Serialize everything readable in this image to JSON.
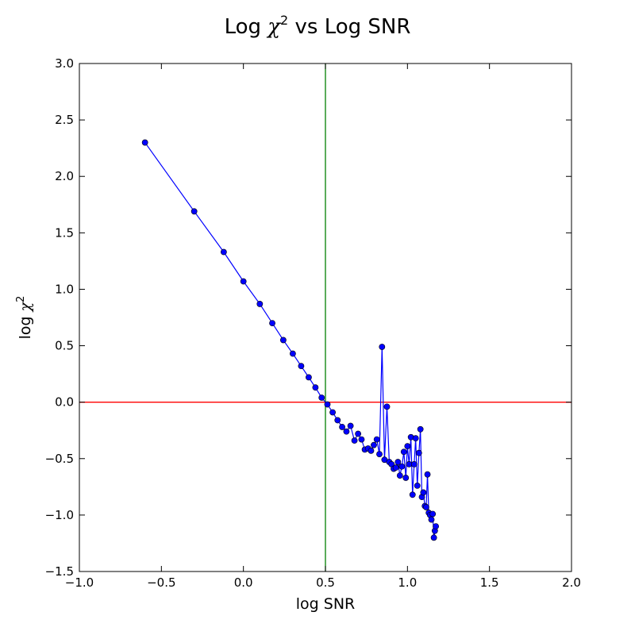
{
  "chart_data": {
    "type": "line",
    "title": {
      "prefix": "Log ",
      "symbol": "χ",
      "superscript": "2",
      "suffix": " vs Log SNR"
    },
    "xlabel": "log SNR",
    "ylabel": {
      "prefix": "log ",
      "symbol": "χ",
      "superscript": "2"
    },
    "xlim": [
      -1.0,
      2.0
    ],
    "ylim": [
      -1.5,
      3.0
    ],
    "xticks": [
      -1.0,
      -0.5,
      0.0,
      0.5,
      1.0,
      1.5,
      2.0
    ],
    "xtick_labels": [
      "−1.0",
      "−0.5",
      "0.0",
      "0.5",
      "1.0",
      "1.5",
      "2.0"
    ],
    "yticks": [
      -1.5,
      -1.0,
      -0.5,
      0.0,
      0.5,
      1.0,
      1.5,
      2.0,
      2.5,
      3.0
    ],
    "ytick_labels": [
      "−1.5",
      "−1.0",
      "−0.5",
      "0.0",
      "0.5",
      "1.0",
      "1.5",
      "2.0",
      "2.5",
      "3.0"
    ],
    "grid": false,
    "reference_lines": [
      {
        "orientation": "vertical",
        "value": 0.5,
        "color": "#008000"
      },
      {
        "orientation": "horizontal",
        "value": 0.0,
        "color": "#ff0000"
      }
    ],
    "series": [
      {
        "color": "#0000ff",
        "marker": "circle",
        "x": [
          -0.6,
          -0.3,
          -0.12,
          0.0,
          0.1,
          0.176,
          0.243,
          0.301,
          0.352,
          0.398,
          0.439,
          0.477,
          0.512,
          0.544,
          0.574,
          0.602,
          0.628,
          0.653,
          0.677,
          0.699,
          0.72,
          0.74,
          0.76,
          0.778,
          0.795,
          0.813,
          0.829,
          0.845,
          0.86,
          0.875,
          0.889,
          0.903,
          0.916,
          0.929,
          0.942,
          0.954,
          0.966,
          0.978,
          0.99,
          1.0,
          1.01,
          1.021,
          1.031,
          1.041,
          1.05,
          1.06,
          1.07,
          1.079,
          1.088,
          1.097,
          1.106,
          1.114,
          1.122,
          1.13,
          1.138,
          1.146,
          1.154,
          1.161,
          1.167,
          1.173
        ],
        "y": [
          2.3,
          1.69,
          1.33,
          1.07,
          0.87,
          0.7,
          0.55,
          0.43,
          0.32,
          0.22,
          0.13,
          0.04,
          -0.02,
          -0.09,
          -0.16,
          -0.22,
          -0.26,
          -0.21,
          -0.34,
          -0.28,
          -0.33,
          -0.42,
          -0.41,
          -0.43,
          -0.38,
          -0.33,
          -0.46,
          0.49,
          -0.51,
          -0.04,
          -0.53,
          -0.55,
          -0.59,
          -0.58,
          -0.53,
          -0.65,
          -0.57,
          -0.44,
          -0.67,
          -0.39,
          -0.55,
          -0.31,
          -0.82,
          -0.55,
          -0.32,
          -0.74,
          -0.45,
          -0.24,
          -0.84,
          -0.8,
          -0.92,
          -0.93,
          -0.64,
          -0.98,
          -1.0,
          -1.04,
          -0.99,
          -1.2,
          -1.14,
          -1.1
        ]
      }
    ]
  }
}
